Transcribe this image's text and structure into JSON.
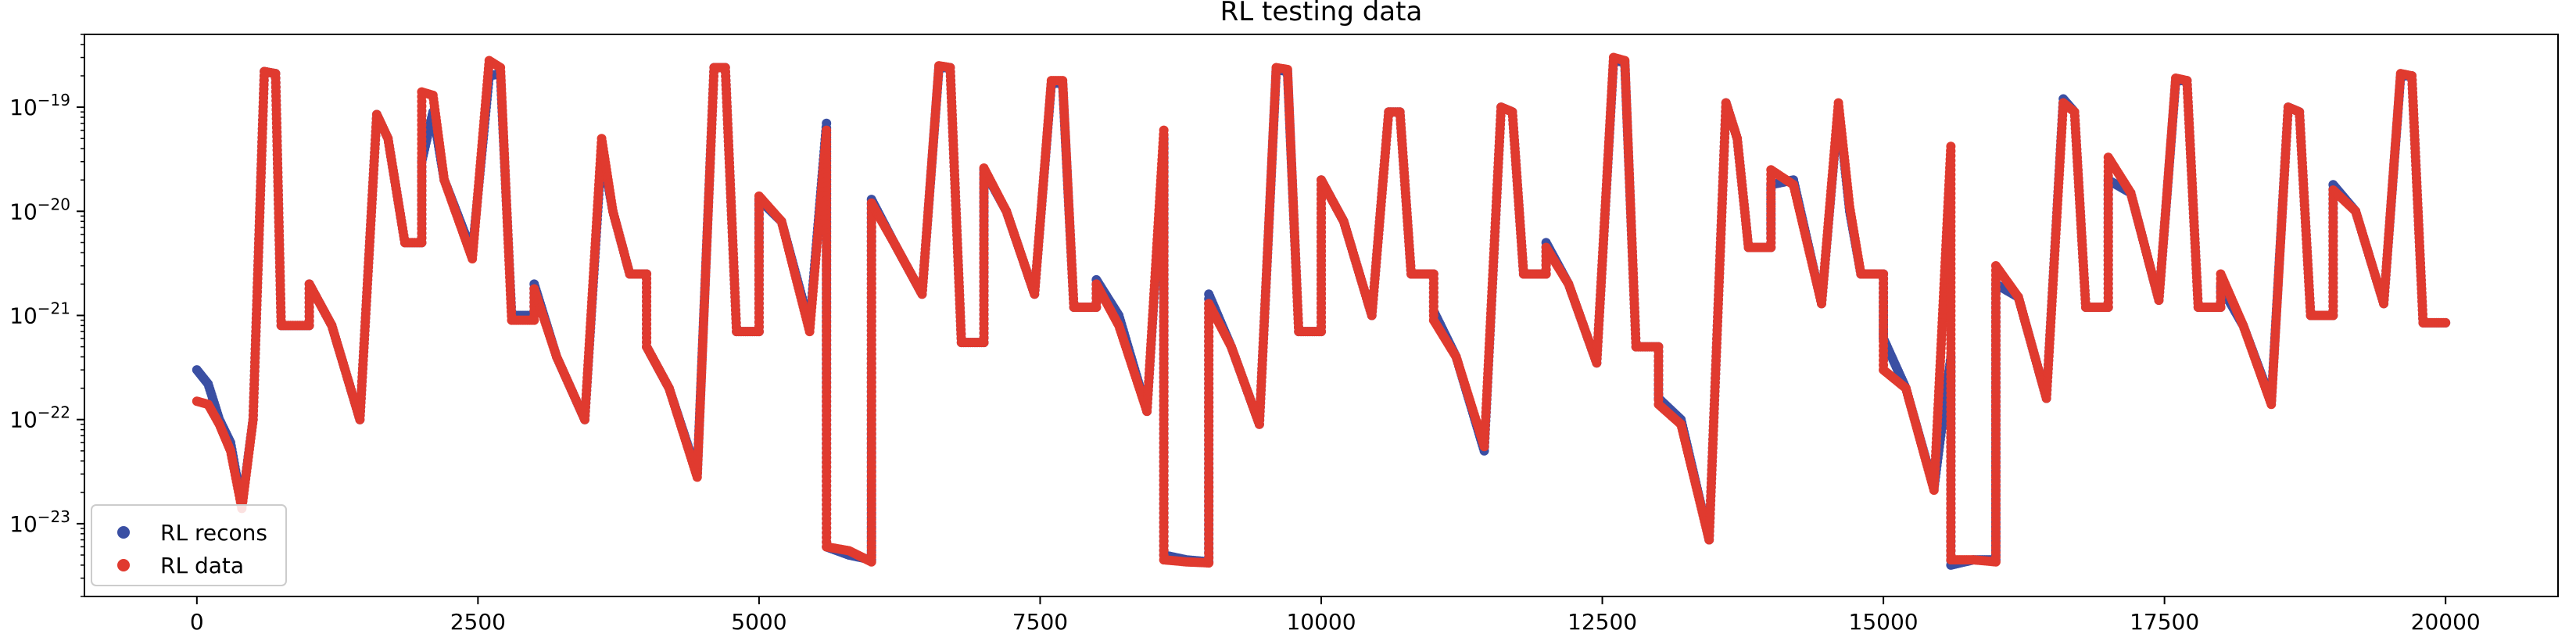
{
  "chart_data": {
    "type": "scatter",
    "title": "RL testing data",
    "xlabel": "",
    "ylabel": "",
    "xlim": [
      -1000,
      21000
    ],
    "ylim": [
      2e-24,
      5e-19
    ],
    "yscale": "log",
    "grid": false,
    "legend_position": "lower-left",
    "x_ticks": [
      0,
      2500,
      5000,
      7500,
      10000,
      12500,
      15000,
      17500,
      20000
    ],
    "x_tick_labels": [
      "0",
      "2500",
      "5000",
      "7500",
      "10000",
      "12500",
      "15000",
      "17500",
      "20000"
    ],
    "y_ticks": [
      1e-23,
      1e-22,
      1e-21,
      1e-20,
      1e-19
    ],
    "y_tick_labels": [
      "10",
      "10",
      "10",
      "10",
      "10"
    ],
    "y_tick_exponents": [
      "−23",
      "−22",
      "−21",
      "−20",
      "−19"
    ],
    "series": [
      {
        "name": "RL recons",
        "color": "#3a4fa3",
        "points": [
          [
            0,
            3e-22
          ],
          [
            100,
            2.2e-22
          ],
          [
            200,
            1e-22
          ],
          [
            300,
            6e-23
          ],
          [
            400,
            1.5e-23
          ],
          [
            500,
            1e-22
          ],
          [
            600,
            2.2e-19
          ],
          [
            700,
            2.1e-19
          ],
          [
            750,
            8e-22
          ],
          [
            1000,
            8e-22
          ],
          [
            1000,
            2e-21
          ],
          [
            1200,
            8e-22
          ],
          [
            1450,
            1e-22
          ],
          [
            1600,
            8.5e-20
          ],
          [
            1700,
            5e-20
          ],
          [
            1850,
            5e-21
          ],
          [
            2000,
            5e-21
          ],
          [
            2000,
            3e-20
          ],
          [
            2100,
            9e-20
          ],
          [
            2200,
            2e-20
          ],
          [
            2450,
            4e-21
          ],
          [
            2600,
            2e-19
          ],
          [
            2700,
            2.1e-19
          ],
          [
            2800,
            1e-21
          ],
          [
            3000,
            1e-21
          ],
          [
            3000,
            2e-21
          ],
          [
            3200,
            4e-22
          ],
          [
            3450,
            1e-22
          ],
          [
            3600,
            4e-20
          ],
          [
            3700,
            1e-20
          ],
          [
            3850,
            2.5e-21
          ],
          [
            4000,
            2.5e-21
          ],
          [
            4000,
            5e-22
          ],
          [
            4200,
            2e-22
          ],
          [
            4450,
            3e-23
          ],
          [
            4600,
            2.4e-19
          ],
          [
            4700,
            2.4e-19
          ],
          [
            4800,
            7e-22
          ],
          [
            5000,
            7e-22
          ],
          [
            5000,
            1.3e-20
          ],
          [
            5200,
            8e-21
          ],
          [
            5450,
            8e-22
          ],
          [
            5600,
            7e-20
          ],
          [
            5600,
            6e-24
          ],
          [
            5800,
            5e-24
          ],
          [
            6000,
            4.5e-24
          ],
          [
            6000,
            1.3e-20
          ],
          [
            6200,
            5e-21
          ],
          [
            6450,
            1.6e-21
          ],
          [
            6600,
            2.4e-19
          ],
          [
            6700,
            2.4e-19
          ],
          [
            6800,
            5.5e-22
          ],
          [
            7000,
            5.5e-22
          ],
          [
            7000,
            2.5e-20
          ],
          [
            7200,
            1e-20
          ],
          [
            7450,
            1.6e-21
          ],
          [
            7600,
            1.7e-19
          ],
          [
            7700,
            1.7e-19
          ],
          [
            7800,
            1.2e-21
          ],
          [
            8000,
            1.2e-21
          ],
          [
            8000,
            2.2e-21
          ],
          [
            8200,
            1e-21
          ],
          [
            8450,
            1.2e-22
          ],
          [
            8600,
            5e-20
          ],
          [
            8600,
            5e-24
          ],
          [
            8800,
            4.5e-24
          ],
          [
            9000,
            4.3e-24
          ],
          [
            9000,
            1.6e-21
          ],
          [
            9200,
            5e-22
          ],
          [
            9450,
            9e-23
          ],
          [
            9600,
            2.3e-19
          ],
          [
            9700,
            2.2e-19
          ],
          [
            9800,
            7e-22
          ],
          [
            10000,
            7e-22
          ],
          [
            10000,
            2e-20
          ],
          [
            10200,
            8e-21
          ],
          [
            10450,
            1e-21
          ],
          [
            10600,
            9e-20
          ],
          [
            10700,
            9e-20
          ],
          [
            10800,
            2.5e-21
          ],
          [
            11000,
            2.5e-21
          ],
          [
            11000,
            1.1e-21
          ],
          [
            11200,
            4e-22
          ],
          [
            11450,
            5e-23
          ],
          [
            11600,
            1e-19
          ],
          [
            11700,
            9e-20
          ],
          [
            11800,
            2.5e-21
          ],
          [
            12000,
            2.5e-21
          ],
          [
            12000,
            5e-21
          ],
          [
            12200,
            2e-21
          ],
          [
            12450,
            3.5e-22
          ],
          [
            12600,
            2.8e-19
          ],
          [
            12700,
            2.7e-19
          ],
          [
            12800,
            5e-22
          ],
          [
            13000,
            5e-22
          ],
          [
            13000,
            1.6e-22
          ],
          [
            13200,
            1e-22
          ],
          [
            13450,
            7e-24
          ],
          [
            13600,
            1.1e-19
          ],
          [
            13700,
            5e-20
          ],
          [
            13800,
            4.5e-21
          ],
          [
            14000,
            4.5e-21
          ],
          [
            14000,
            1.8e-20
          ],
          [
            14200,
            2e-20
          ],
          [
            14450,
            1.3e-21
          ],
          [
            14600,
            1e-19
          ],
          [
            14700,
            1e-20
          ],
          [
            14800,
            2.5e-21
          ],
          [
            15000,
            2.5e-21
          ],
          [
            15000,
            6e-22
          ],
          [
            15200,
            2e-22
          ],
          [
            15450,
            2.2e-23
          ],
          [
            15600,
            4e-22
          ],
          [
            15600,
            4e-24
          ],
          [
            15800,
            4.5e-24
          ],
          [
            16000,
            4.5e-24
          ],
          [
            16000,
            2e-21
          ],
          [
            16200,
            1.5e-21
          ],
          [
            16450,
            1.6e-22
          ],
          [
            16600,
            1.2e-19
          ],
          [
            16700,
            9e-20
          ],
          [
            16800,
            1.2e-21
          ],
          [
            17000,
            1.2e-21
          ],
          [
            17000,
            2e-20
          ],
          [
            17200,
            1.5e-20
          ],
          [
            17450,
            1.4e-21
          ],
          [
            17600,
            1.8e-19
          ],
          [
            17700,
            1.8e-19
          ],
          [
            17800,
            1.2e-21
          ],
          [
            18000,
            1.2e-21
          ],
          [
            18000,
            1.9e-21
          ],
          [
            18200,
            8e-22
          ],
          [
            18450,
            1.5e-22
          ],
          [
            18600,
            1e-19
          ],
          [
            18700,
            9e-20
          ],
          [
            18800,
            1e-21
          ],
          [
            19000,
            1e-21
          ],
          [
            19000,
            1.8e-20
          ],
          [
            19200,
            1e-20
          ],
          [
            19450,
            1.3e-21
          ],
          [
            19600,
            2e-19
          ],
          [
            19700,
            2e-19
          ],
          [
            19800,
            8.5e-22
          ],
          [
            20000,
            8.5e-22
          ]
        ]
      },
      {
        "name": "RL data",
        "color": "#e03a2f",
        "points": [
          [
            0,
            1.5e-22
          ],
          [
            100,
            1.4e-22
          ],
          [
            200,
            9e-23
          ],
          [
            300,
            5e-23
          ],
          [
            400,
            1.4e-23
          ],
          [
            500,
            1e-22
          ],
          [
            600,
            2.2e-19
          ],
          [
            700,
            2.1e-19
          ],
          [
            750,
            8e-22
          ],
          [
            1000,
            8e-22
          ],
          [
            1000,
            2e-21
          ],
          [
            1200,
            8e-22
          ],
          [
            1450,
            1e-22
          ],
          [
            1600,
            8.5e-20
          ],
          [
            1700,
            5e-20
          ],
          [
            1850,
            5e-21
          ],
          [
            2000,
            5e-21
          ],
          [
            2000,
            1.4e-19
          ],
          [
            2100,
            1.3e-19
          ],
          [
            2200,
            2e-20
          ],
          [
            2450,
            3.5e-21
          ],
          [
            2600,
            2.8e-19
          ],
          [
            2700,
            2.4e-19
          ],
          [
            2800,
            9e-22
          ],
          [
            3000,
            9e-22
          ],
          [
            3000,
            1.8e-21
          ],
          [
            3200,
            4e-22
          ],
          [
            3450,
            1e-22
          ],
          [
            3600,
            5e-20
          ],
          [
            3700,
            1e-20
          ],
          [
            3850,
            2.5e-21
          ],
          [
            4000,
            2.5e-21
          ],
          [
            4000,
            5e-22
          ],
          [
            4200,
            2e-22
          ],
          [
            4450,
            2.8e-23
          ],
          [
            4600,
            2.4e-19
          ],
          [
            4700,
            2.4e-19
          ],
          [
            4800,
            7e-22
          ],
          [
            5000,
            7e-22
          ],
          [
            5000,
            1.4e-20
          ],
          [
            5200,
            8e-21
          ],
          [
            5450,
            7e-22
          ],
          [
            5600,
            6e-20
          ],
          [
            5600,
            6e-24
          ],
          [
            5800,
            5.5e-24
          ],
          [
            6000,
            4.3e-24
          ],
          [
            6000,
            1.2e-20
          ],
          [
            6200,
            5e-21
          ],
          [
            6450,
            1.6e-21
          ],
          [
            6600,
            2.5e-19
          ],
          [
            6700,
            2.4e-19
          ],
          [
            6800,
            5.5e-22
          ],
          [
            7000,
            5.5e-22
          ],
          [
            7000,
            2.6e-20
          ],
          [
            7200,
            1e-20
          ],
          [
            7450,
            1.6e-21
          ],
          [
            7600,
            1.8e-19
          ],
          [
            7700,
            1.8e-19
          ],
          [
            7800,
            1.2e-21
          ],
          [
            8000,
            1.2e-21
          ],
          [
            8000,
            2e-21
          ],
          [
            8200,
            8e-22
          ],
          [
            8450,
            1.2e-22
          ],
          [
            8600,
            6e-20
          ],
          [
            8600,
            4.5e-24
          ],
          [
            8800,
            4.3e-24
          ],
          [
            9000,
            4.2e-24
          ],
          [
            9000,
            1.3e-21
          ],
          [
            9200,
            5e-22
          ],
          [
            9450,
            9e-23
          ],
          [
            9600,
            2.4e-19
          ],
          [
            9700,
            2.3e-19
          ],
          [
            9800,
            7e-22
          ],
          [
            10000,
            7e-22
          ],
          [
            10000,
            2e-20
          ],
          [
            10200,
            8e-21
          ],
          [
            10450,
            1e-21
          ],
          [
            10600,
            9e-20
          ],
          [
            10700,
            9e-20
          ],
          [
            10800,
            2.5e-21
          ],
          [
            11000,
            2.5e-21
          ],
          [
            11000,
            9e-22
          ],
          [
            11200,
            4e-22
          ],
          [
            11450,
            5.5e-23
          ],
          [
            11600,
            1e-19
          ],
          [
            11700,
            9e-20
          ],
          [
            11800,
            2.5e-21
          ],
          [
            12000,
            2.5e-21
          ],
          [
            12000,
            4.5e-21
          ],
          [
            12200,
            2e-21
          ],
          [
            12450,
            3.5e-22
          ],
          [
            12600,
            3e-19
          ],
          [
            12700,
            2.8e-19
          ],
          [
            12800,
            5e-22
          ],
          [
            13000,
            5e-22
          ],
          [
            13000,
            1.4e-22
          ],
          [
            13200,
            9e-23
          ],
          [
            13450,
            7e-24
          ],
          [
            13600,
            1.1e-19
          ],
          [
            13700,
            5e-20
          ],
          [
            13800,
            4.5e-21
          ],
          [
            14000,
            4.5e-21
          ],
          [
            14000,
            2.5e-20
          ],
          [
            14200,
            1.8e-20
          ],
          [
            14450,
            1.3e-21
          ],
          [
            14600,
            1.1e-19
          ],
          [
            14700,
            1.1e-20
          ],
          [
            14800,
            2.5e-21
          ],
          [
            15000,
            2.5e-21
          ],
          [
            15000,
            3e-22
          ],
          [
            15200,
            2e-22
          ],
          [
            15450,
            2.1e-23
          ],
          [
            15600,
            4.2e-20
          ],
          [
            15600,
            4.5e-24
          ],
          [
            15800,
            4.5e-24
          ],
          [
            16000,
            4.3e-24
          ],
          [
            16000,
            3e-21
          ],
          [
            16200,
            1.5e-21
          ],
          [
            16450,
            1.6e-22
          ],
          [
            16600,
            1.1e-19
          ],
          [
            16700,
            9e-20
          ],
          [
            16800,
            1.2e-21
          ],
          [
            17000,
            1.2e-21
          ],
          [
            17000,
            3.3e-20
          ],
          [
            17200,
            1.5e-20
          ],
          [
            17450,
            1.4e-21
          ],
          [
            17600,
            1.9e-19
          ],
          [
            17700,
            1.8e-19
          ],
          [
            17800,
            1.2e-21
          ],
          [
            18000,
            1.2e-21
          ],
          [
            18000,
            2.5e-21
          ],
          [
            18200,
            8e-22
          ],
          [
            18450,
            1.4e-22
          ],
          [
            18600,
            1e-19
          ],
          [
            18700,
            9e-20
          ],
          [
            18800,
            1e-21
          ],
          [
            19000,
            1e-21
          ],
          [
            19000,
            1.6e-20
          ],
          [
            19200,
            1e-20
          ],
          [
            19450,
            1.3e-21
          ],
          [
            19600,
            2.1e-19
          ],
          [
            19700,
            2e-19
          ],
          [
            19800,
            8.5e-22
          ],
          [
            20000,
            8.5e-22
          ]
        ]
      }
    ]
  }
}
